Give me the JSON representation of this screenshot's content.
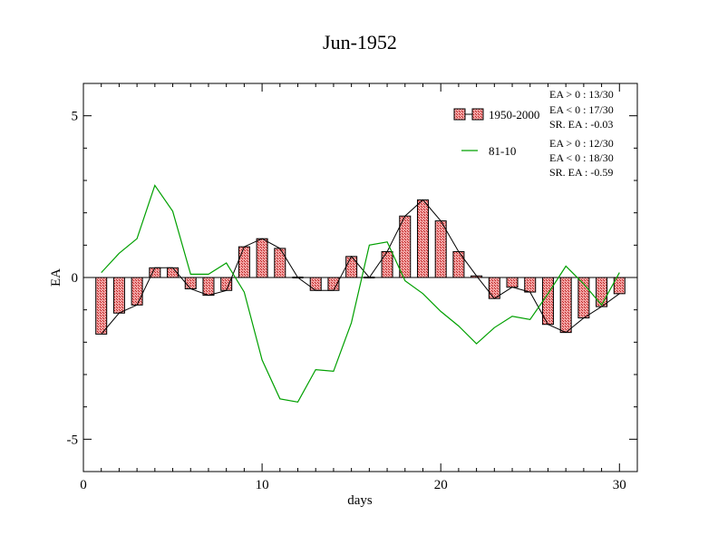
{
  "chart_data": {
    "type": "bar",
    "title": "Jun-1952",
    "xlabel": "days",
    "ylabel": "EA",
    "xlim": [
      0,
      31
    ],
    "ylim": [
      -6,
      6
    ],
    "xticks": [
      0,
      10,
      20,
      30
    ],
    "yticks": [
      -5,
      0,
      5
    ],
    "x": [
      1,
      2,
      3,
      4,
      5,
      6,
      7,
      8,
      9,
      10,
      11,
      12,
      13,
      14,
      15,
      16,
      17,
      18,
      19,
      20,
      21,
      22,
      23,
      24,
      25,
      26,
      27,
      28,
      29,
      30
    ],
    "series": [
      {
        "name": "1950-2000",
        "kind": "bar",
        "color": "#e07070",
        "values": [
          -1.75,
          -1.1,
          -0.85,
          0.3,
          0.3,
          -0.35,
          -0.55,
          -0.4,
          0.95,
          1.2,
          0.9,
          0.0,
          -0.4,
          -0.4,
          0.65,
          0.0,
          0.8,
          1.9,
          2.4,
          1.75,
          0.8,
          0.05,
          -0.65,
          -0.3,
          -0.45,
          -1.45,
          -1.7,
          -1.25,
          -0.9,
          -0.5
        ]
      },
      {
        "name": "81-10",
        "kind": "line",
        "color": "#00a000",
        "values": [
          0.15,
          0.75,
          1.2,
          2.85,
          2.05,
          0.1,
          0.1,
          0.45,
          -0.45,
          -2.55,
          -3.75,
          -3.85,
          -2.85,
          -2.9,
          -1.4,
          1.0,
          1.1,
          -0.1,
          -0.5,
          -1.05,
          -1.5,
          -2.05,
          -1.55,
          -1.2,
          -1.3,
          -0.5,
          0.35,
          -0.2,
          -0.85,
          0.15
        ]
      }
    ],
    "stats": [
      {
        "series": "1950-2000",
        "lines": [
          "EA > 0 : 13/30",
          "EA < 0 : 17/30",
          "SR. EA : -0.03"
        ]
      },
      {
        "series": "81-10",
        "lines": [
          "EA > 0 : 12/30",
          "EA < 0 : 18/30",
          "SR. EA : -0.59"
        ]
      }
    ],
    "legend_position": "top-right",
    "grid": false
  }
}
